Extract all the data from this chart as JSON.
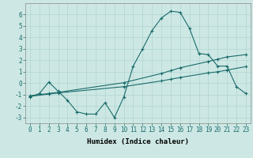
{
  "xlabel": "Humidex (Indice chaleur)",
  "bg_color": "#cde8e4",
  "grid_color": "#b0d4d0",
  "line_color": "#1a6b6b",
  "x_ticks": [
    0,
    1,
    2,
    3,
    4,
    5,
    6,
    7,
    8,
    9,
    10,
    11,
    12,
    13,
    14,
    15,
    16,
    17,
    18,
    19,
    20,
    21,
    22,
    23
  ],
  "ylim": [
    -3.5,
    7.0
  ],
  "xlim": [
    -0.5,
    23.5
  ],
  "line1_x": [
    0,
    1,
    2,
    3,
    4,
    5,
    6,
    7,
    8,
    9,
    10,
    11,
    12,
    13,
    14,
    15,
    16,
    17,
    18,
    19,
    20,
    21,
    22,
    23
  ],
  "line1_y": [
    -1.2,
    -0.9,
    0.1,
    -0.7,
    -1.5,
    -2.5,
    -2.7,
    -2.7,
    -1.7,
    -3.0,
    -1.2,
    1.5,
    3.0,
    4.6,
    5.7,
    6.3,
    6.2,
    4.8,
    2.6,
    2.5,
    1.5,
    1.5,
    -0.3,
    -0.9
  ],
  "line2_x": [
    0,
    2,
    3,
    10,
    14,
    15,
    16,
    19,
    20,
    21,
    23
  ],
  "line2_y": [
    -1.1,
    -0.9,
    -0.8,
    0.05,
    0.85,
    1.1,
    1.35,
    1.9,
    2.1,
    2.3,
    2.5
  ],
  "line3_x": [
    0,
    2,
    3,
    10,
    14,
    15,
    16,
    19,
    20,
    21,
    23
  ],
  "line3_y": [
    -1.15,
    -0.95,
    -0.85,
    -0.3,
    0.2,
    0.35,
    0.5,
    0.9,
    1.0,
    1.15,
    1.45
  ],
  "yticks": [
    -3,
    -2,
    -1,
    0,
    1,
    2,
    3,
    4,
    5,
    6
  ],
  "xlabel_fontsize": 6.5,
  "tick_fontsize": 5.5
}
